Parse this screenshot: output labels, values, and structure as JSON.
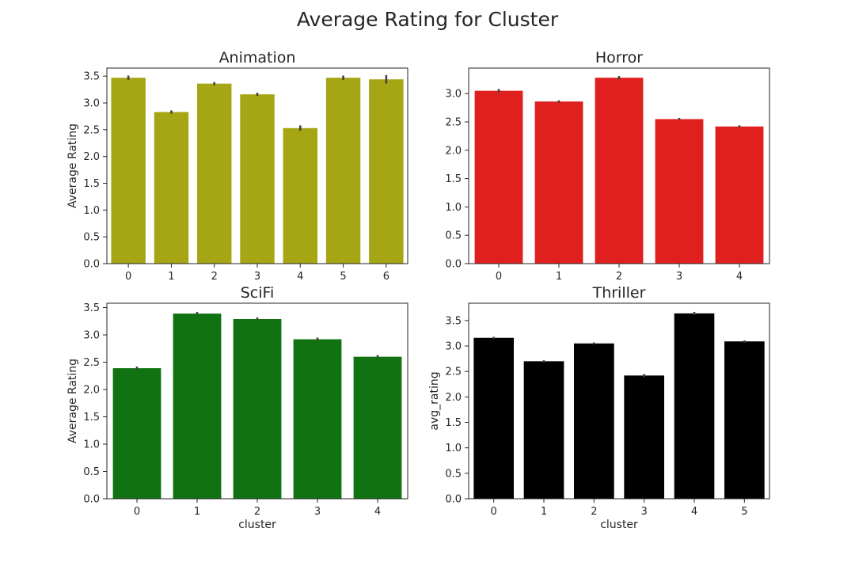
{
  "figure": {
    "suptitle": "Average Rating for Cluster"
  },
  "chart_data": [
    {
      "type": "bar",
      "title": "Animation",
      "xlabel": "",
      "ylabel": "Average Rating",
      "categories": [
        "0",
        "1",
        "2",
        "3",
        "4",
        "5",
        "6"
      ],
      "values": [
        3.47,
        2.83,
        3.36,
        3.16,
        2.53,
        3.47,
        3.44
      ],
      "error_bars": [
        0.04,
        0.03,
        0.03,
        0.03,
        0.05,
        0.04,
        0.08
      ],
      "ylim": [
        0,
        3.65
      ],
      "yticks": [
        "0.0",
        "0.5",
        "1.0",
        "1.5",
        "2.0",
        "2.5",
        "3.0",
        "3.5"
      ],
      "color": "#a6a614",
      "grid": false
    },
    {
      "type": "bar",
      "title": "Horror",
      "xlabel": "",
      "ylabel": "",
      "categories": [
        "0",
        "1",
        "2",
        "3",
        "4"
      ],
      "values": [
        3.05,
        2.86,
        3.28,
        2.55,
        2.42
      ],
      "error_bars": [
        0.03,
        0.02,
        0.03,
        0.02,
        0.02
      ],
      "ylim": [
        0,
        3.45
      ],
      "yticks": [
        "0.0",
        "0.5",
        "1.0",
        "1.5",
        "2.0",
        "2.5",
        "3.0"
      ],
      "color": "#e01f1f",
      "grid": false
    },
    {
      "type": "bar",
      "title": "SciFi",
      "xlabel": "cluster",
      "ylabel": "Average Rating",
      "categories": [
        "0",
        "1",
        "2",
        "3",
        "4"
      ],
      "values": [
        2.39,
        3.39,
        3.29,
        2.92,
        2.6
      ],
      "error_bars": [
        0.03,
        0.03,
        0.03,
        0.03,
        0.03
      ],
      "ylim": [
        0,
        3.58
      ],
      "yticks": [
        "0.0",
        "0.5",
        "1.0",
        "1.5",
        "2.0",
        "2.5",
        "3.0",
        "3.5"
      ],
      "color": "#107210",
      "grid": false
    },
    {
      "type": "bar",
      "title": "Thriller",
      "xlabel": "cluster",
      "ylabel": "avg_rating",
      "categories": [
        "0",
        "1",
        "2",
        "3",
        "4",
        "5"
      ],
      "values": [
        3.16,
        2.7,
        3.05,
        2.42,
        3.64,
        3.09
      ],
      "error_bars": [
        0.02,
        0.02,
        0.02,
        0.03,
        0.03,
        0.02
      ],
      "ylim": [
        0,
        3.84
      ],
      "yticks": [
        "0.0",
        "0.5",
        "1.0",
        "1.5",
        "2.0",
        "2.5",
        "3.0",
        "3.5"
      ],
      "color": "#000000",
      "grid": false
    }
  ]
}
